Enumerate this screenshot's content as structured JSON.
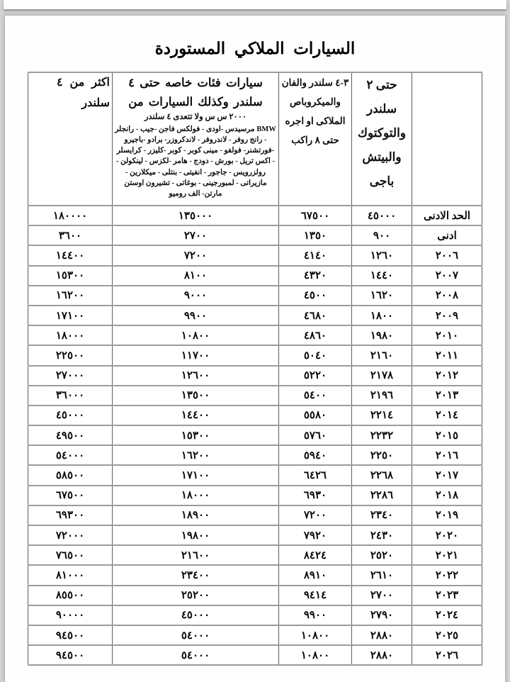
{
  "title": "السيارات الملاكي المستوردة",
  "table": {
    "headers": {
      "year_col": "",
      "upto2": "حتى ٢ سلندر والتوكتوك والبيتش باجى",
      "cyl34": "٣-٤ سلندر والفان والميكروباص الملاكى او اجره حتى ٨ راكب",
      "special_title": "سيارات فئات خاصه حتى ٤ سلندر وكذلك السيارات من",
      "special_sub": "٢٠٠٠ س س ولا تتعدى ٤ سلندر",
      "special_brands": "BMW مرسيدس -اودى - فولكس فاجن -جيب - رانجلر - رانج روفر - لاندروفر - لاندكروزر- برادو -باجيرو -فورتشنر- فولفو - مينى كوبر - كوبر -كليزر - كرايسلر - اكس تريل - بورش - دودج - هامر -لكزس - لينكولن - رولزرويس - جاجور - انفيتى - بنتلى - ميكلارين - مازيراتى - لمبورجينى - بوغاتى - تشيرون اوستن مارتن- الف روميو",
      "more4": "اكثر من ٤ سلندر"
    },
    "rows": [
      {
        "label": "الحد الادنى",
        "values": [
          "٤٥٠٠٠",
          "٦٧٥٠٠",
          "١٣٥٠٠٠",
          "١٨٠٠٠٠"
        ]
      },
      {
        "label": "ادنى",
        "values": [
          "٩٠٠",
          "١٣٥٠",
          "٢٧٠٠",
          "٣٦٠٠"
        ]
      },
      {
        "label": "٢٠٠٦",
        "values": [
          "١٢٦٠",
          "٤١٤٠",
          "٧٢٠٠",
          "١٤٤٠٠"
        ]
      },
      {
        "label": "٢٠٠٧",
        "values": [
          "١٤٤٠",
          "٤٣٢٠",
          "٨١٠٠",
          "١٥٣٠٠"
        ]
      },
      {
        "label": "٢٠٠٨",
        "values": [
          "١٦٢٠",
          "٤٥٠٠",
          "٩٠٠٠",
          "١٦٢٠٠"
        ]
      },
      {
        "label": "٢٠٠٩",
        "values": [
          "١٨٠٠",
          "٤٦٨٠",
          "٩٩٠٠",
          "١٧١٠٠"
        ]
      },
      {
        "label": "٢٠١٠",
        "values": [
          "١٩٨٠",
          "٤٨٦٠",
          "١٠٨٠٠",
          "١٨٠٠٠"
        ]
      },
      {
        "label": "٢٠١١",
        "values": [
          "٢١٦٠",
          "٥٠٤٠",
          "١١٧٠٠",
          "٢٢٥٠٠"
        ]
      },
      {
        "label": "٢٠١٢",
        "values": [
          "٢١٧٨",
          "٥٢٢٠",
          "١٢٦٠٠",
          "٢٧٠٠٠"
        ]
      },
      {
        "label": "٢٠١٣",
        "values": [
          "٢١٩٦",
          "٥٤٠٠",
          "١٣٥٠٠",
          "٣٦٠٠٠"
        ]
      },
      {
        "label": "٢٠١٤",
        "values": [
          "٢٢١٤",
          "٥٥٨٠",
          "١٤٤٠٠",
          "٤٥٠٠٠"
        ]
      },
      {
        "label": "٢٠١٥",
        "values": [
          "٢٢٣٢",
          "٥٧٦٠",
          "١٥٣٠٠",
          "٤٩٥٠٠"
        ]
      },
      {
        "label": "٢٠١٦",
        "values": [
          "٢٢٥٠",
          "٥٩٤٠",
          "١٦٢٠٠",
          "٥٤٠٠٠"
        ]
      },
      {
        "label": "٢٠١٧",
        "values": [
          "٢٢٦٨",
          "٦٤٢٦",
          "١٧١٠٠",
          "٥٨٥٠٠"
        ]
      },
      {
        "label": "٢٠١٨",
        "values": [
          "٢٢٨٦",
          "٦٩٣٠",
          "١٨٠٠٠",
          "٦٧٥٠٠"
        ]
      },
      {
        "label": "٢٠١٩",
        "values": [
          "٢٣٤٠",
          "٧٢٠٠",
          "١٨٩٠٠",
          "٦٩٣٠٠"
        ]
      },
      {
        "label": "٢٠٢٠",
        "values": [
          "٢٤٣٠",
          "٧٩٢٠",
          "١٩٨٠٠",
          "٧٢٠٠٠"
        ]
      },
      {
        "label": "٢٠٢١",
        "values": [
          "٢٥٢٠",
          "٨٤٢٤",
          "٢١٦٠٠",
          "٧٦٥٠٠"
        ]
      },
      {
        "label": "٢٠٢٢",
        "values": [
          "٢٦١٠",
          "٨٩١٠",
          "٢٣٤٠٠",
          "٨١٠٠٠"
        ]
      },
      {
        "label": "٢٠٢٣",
        "values": [
          "٢٧٠٠",
          "٩٤١٤",
          "٢٥٢٠٠",
          "٨٥٥٠٠"
        ]
      },
      {
        "label": "٢٠٢٤",
        "values": [
          "٢٧٩٠",
          "٩٩٠٠",
          "٤٥٠٠٠",
          "٩٠٠٠٠"
        ]
      },
      {
        "label": "٢٠٢٥",
        "values": [
          "٢٨٨٠",
          "١٠٨٠٠",
          "٥٤٠٠٠",
          "٩٤٥٠٠"
        ]
      },
      {
        "label": "٢٠٢٦",
        "values": [
          "٢٨٨٠",
          "١٠٨٠٠",
          "٥٤٠٠٠",
          "٩٤٥٠٠"
        ]
      }
    ]
  }
}
